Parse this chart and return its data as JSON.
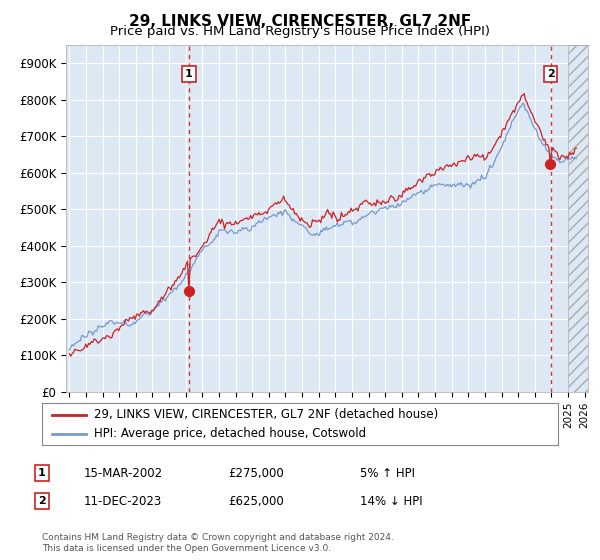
{
  "title": "29, LINKS VIEW, CIRENCESTER, GL7 2NF",
  "subtitle": "Price paid vs. HM Land Registry's House Price Index (HPI)",
  "ytick_labels": [
    "£0",
    "£100K",
    "£200K",
    "£300K",
    "£400K",
    "£500K",
    "£600K",
    "£700K",
    "£800K",
    "£900K"
  ],
  "yticks": [
    0,
    100000,
    200000,
    300000,
    400000,
    500000,
    600000,
    700000,
    800000,
    900000
  ],
  "ylim": [
    0,
    950000
  ],
  "xlim_start": 1994.8,
  "xlim_end": 2026.2,
  "xticks": [
    1995,
    1996,
    1997,
    1998,
    1999,
    2000,
    2001,
    2002,
    2003,
    2004,
    2005,
    2006,
    2007,
    2008,
    2009,
    2010,
    2011,
    2012,
    2013,
    2014,
    2015,
    2016,
    2017,
    2018,
    2019,
    2020,
    2021,
    2022,
    2023,
    2024,
    2025,
    2026
  ],
  "hpi_color": "#7799cc",
  "price_color": "#cc2222",
  "plot_bg": "#dde8f5",
  "sale1_date": 2002.2,
  "sale1_price": 275000,
  "sale2_date": 2023.95,
  "sale2_price": 625000,
  "sale1_label": "1",
  "sale2_label": "2",
  "legend_line1": "29, LINKS VIEW, CIRENCESTER, GL7 2NF (detached house)",
  "legend_line2": "HPI: Average price, detached house, Cotswold",
  "annotation1_date": "15-MAR-2002",
  "annotation1_price": "£275,000",
  "annotation1_hpi": "5% ↑ HPI",
  "annotation2_date": "11-DEC-2023",
  "annotation2_price": "£625,000",
  "annotation2_hpi": "14% ↓ HPI",
  "footer": "Contains HM Land Registry data © Crown copyright and database right 2024.\nThis data is licensed under the Open Government Licence v3.0.",
  "hatch_start": 2025.0
}
